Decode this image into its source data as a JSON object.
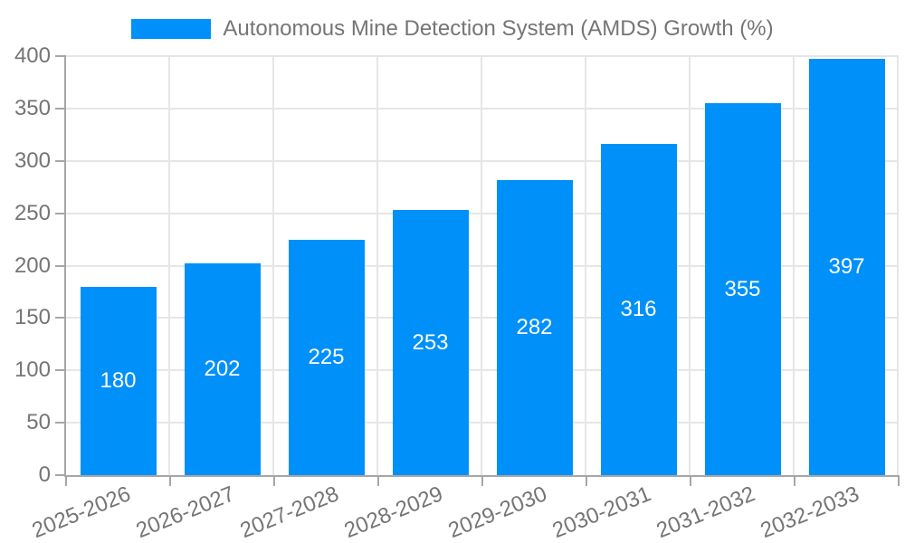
{
  "chart_data": {
    "type": "bar",
    "title": "",
    "legend": "Autonomous Mine Detection System (AMDS) Growth (%)",
    "legend_position": "top",
    "categories": [
      "2025-2026",
      "2026-2027",
      "2027-2028",
      "2028-2029",
      "2029-2030",
      "2030-2031",
      "2031-2032",
      "2032-2033"
    ],
    "values": [
      180,
      202,
      225,
      253,
      282,
      316,
      355,
      397
    ],
    "xlabel": "",
    "ylabel": "",
    "ylim": [
      0,
      400
    ],
    "yticks": [
      0,
      50,
      100,
      150,
      200,
      250,
      300,
      350,
      400
    ],
    "grid": true,
    "colors": {
      "bar": "#0090fa",
      "bar_label": "#ffffff",
      "grid": "#e6e6e6",
      "axis": "#a6a6a6",
      "tick_text": "#757575",
      "legend_text": "#757575",
      "background": "#ffffff"
    }
  }
}
